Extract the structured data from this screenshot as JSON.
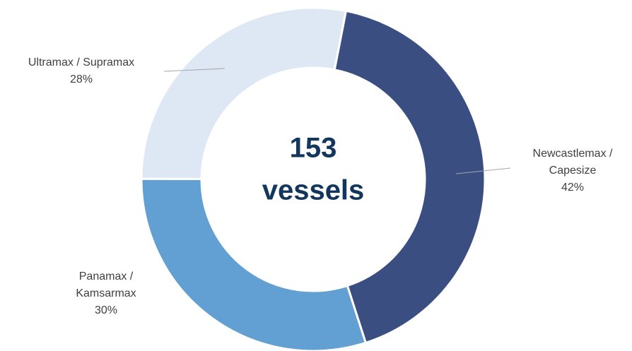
{
  "chart_data": {
    "type": "donut",
    "categories": [
      [
        "Newcastlemax /",
        "Capesize"
      ],
      [
        "Panamax /",
        "Kamsarmax"
      ],
      [
        "Ultramax / Supramax"
      ]
    ],
    "values": [
      42,
      30,
      28
    ],
    "value_labels": [
      "42%",
      "30%",
      "28%"
    ],
    "colors": [
      "#3a4e82",
      "#629fd2",
      "#dde8f4"
    ],
    "center_value": 153,
    "center_label": "vessels"
  }
}
